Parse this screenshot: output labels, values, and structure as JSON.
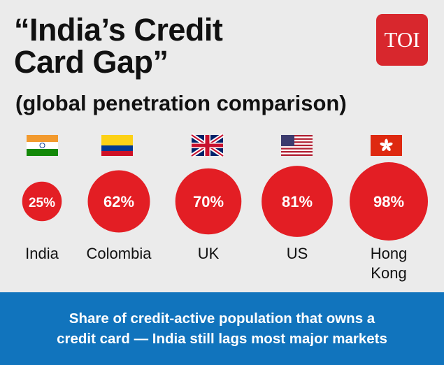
{
  "header": {
    "title_line1": "“India’s Credit",
    "title_line2": "Card Gap”",
    "subtitle": "(global penetration comparison)"
  },
  "logo": {
    "text": "TOI",
    "color": "#d8272d"
  },
  "footer": {
    "line1": "Share of credit-active population that owns a",
    "line2": "credit card — India still lags most major markets"
  },
  "chart_data": {
    "type": "bubble",
    "title": "“India’s Credit Card Gap”",
    "subtitle": "(global penetration comparison)",
    "unit": "%",
    "bubble_color": "#e31e24",
    "categories": [
      {
        "name": "India",
        "label_lines": [
          "India"
        ],
        "flag": "india-flag",
        "value": 25,
        "display": "25%"
      },
      {
        "name": "Colombia",
        "label_lines": [
          "Colombia"
        ],
        "flag": "colombia-flag",
        "value": 62,
        "display": "62%"
      },
      {
        "name": "UK",
        "label_lines": [
          "UK"
        ],
        "flag": "uk-flag",
        "value": 70,
        "display": "70%"
      },
      {
        "name": "US",
        "label_lines": [
          "US"
        ],
        "flag": "us-flag",
        "value": 81,
        "display": "81%"
      },
      {
        "name": "Hong Kong",
        "label_lines": [
          "Hong",
          "Kong"
        ],
        "flag": "hong-kong-flag",
        "value": 98,
        "display": "98%"
      }
    ]
  }
}
